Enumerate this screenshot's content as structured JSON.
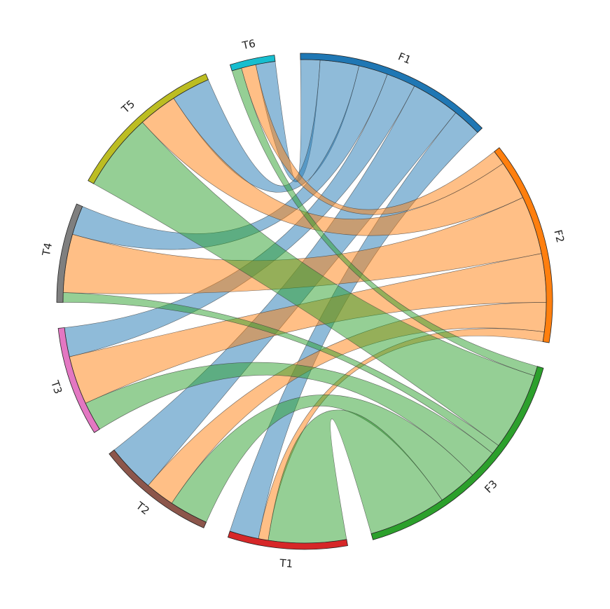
{
  "chart_data": {
    "type": "chord",
    "title": "",
    "nodes": [
      {
        "id": "F1",
        "label": "F1",
        "color": "#1f77b4"
      },
      {
        "id": "F2",
        "label": "F2",
        "color": "#ff7f0e"
      },
      {
        "id": "F3",
        "label": "F3",
        "color": "#2ca02c"
      },
      {
        "id": "T1",
        "label": "T1",
        "color": "#d62728"
      },
      {
        "id": "T2",
        "label": "T2",
        "color": "#8c564b"
      },
      {
        "id": "T3",
        "label": "T3",
        "color": "#e377c2"
      },
      {
        "id": "T4",
        "label": "T4",
        "color": "#7f7f7f"
      },
      {
        "id": "T5",
        "label": "T5",
        "color": "#bcbd22"
      },
      {
        "id": "T6",
        "label": "T6",
        "color": "#17becf"
      }
    ],
    "links": [
      {
        "source": "F1",
        "target": "T6",
        "value": 2
      },
      {
        "source": "F1",
        "target": "T5",
        "value": 4
      },
      {
        "source": "F1",
        "target": "T4",
        "value": 3
      },
      {
        "source": "F1",
        "target": "T3",
        "value": 3
      },
      {
        "source": "F1",
        "target": "T2",
        "value": 5
      },
      {
        "source": "F1",
        "target": "T1",
        "value": 3
      },
      {
        "source": "F2",
        "target": "T6",
        "value": 1.5
      },
      {
        "source": "F2",
        "target": "T5",
        "value": 4
      },
      {
        "source": "F2",
        "target": "T4",
        "value": 6
      },
      {
        "source": "F2",
        "target": "T3",
        "value": 5
      },
      {
        "source": "F2",
        "target": "T2",
        "value": 3
      },
      {
        "source": "F2",
        "target": "T1",
        "value": 1
      },
      {
        "source": "F3",
        "target": "T6",
        "value": 1
      },
      {
        "source": "F3",
        "target": "T5",
        "value": 8
      },
      {
        "source": "F3",
        "target": "T4",
        "value": 1
      },
      {
        "source": "F3",
        "target": "T3",
        "value": 3
      },
      {
        "source": "F3",
        "target": "T2",
        "value": 4
      },
      {
        "source": "F3",
        "target": "T1",
        "value": 8
      }
    ]
  }
}
